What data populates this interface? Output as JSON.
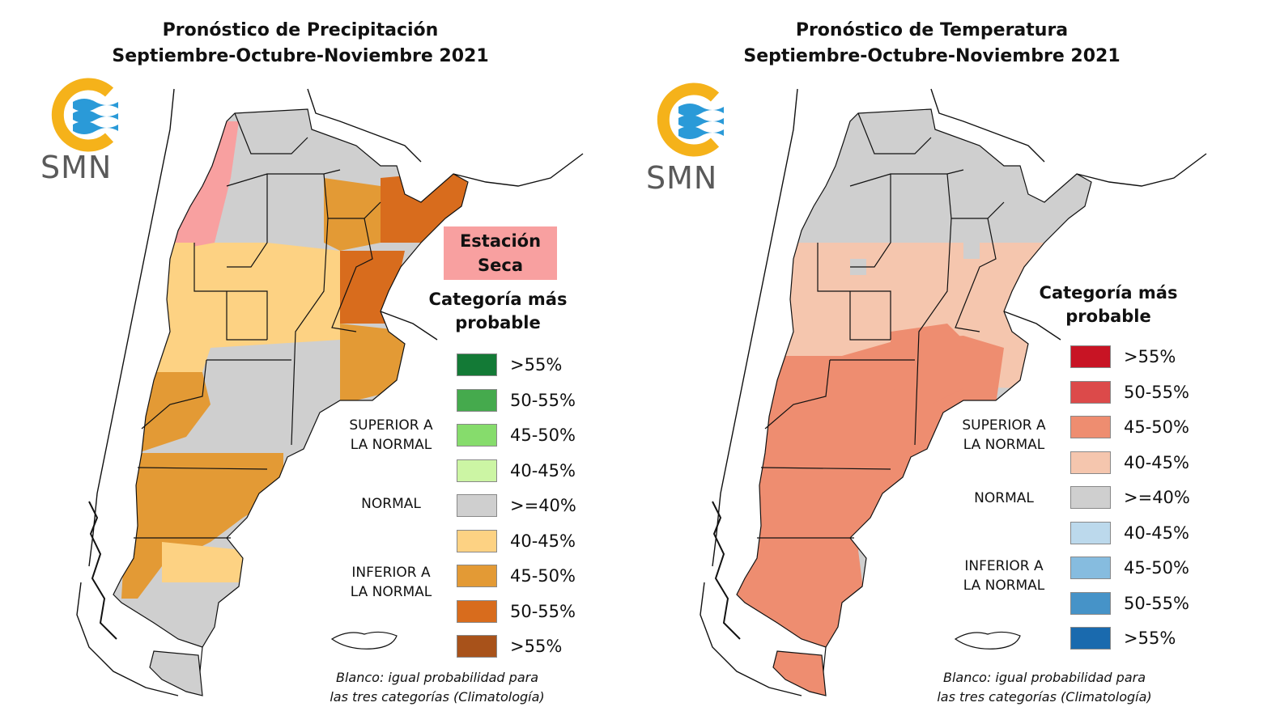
{
  "panels": [
    {
      "title_line1": "Pronóstico de Precipitación",
      "title_line2": "Septiembre-Octubre-Noviembre 2021",
      "logo_text": "SMN",
      "dry_label_line1": "Estación",
      "dry_label_line2": "Seca",
      "dry_color": "#f8a0a0",
      "legend_title_line1": "Categoría más",
      "legend_title_line2": "probable",
      "group_superior_line1": "SUPERIOR A",
      "group_superior_line2": "LA NORMAL",
      "group_normal": "NORMAL",
      "group_inferior_line1": "INFERIOR A",
      "group_inferior_line2": "LA NORMAL",
      "legend": [
        {
          "label": ">55%",
          "color": "#137a36"
        },
        {
          "label": "50-55%",
          "color": "#45aa4d"
        },
        {
          "label": "45-50%",
          "color": "#86dc6c"
        },
        {
          "label": "40-45%",
          "color": "#ccf5a4"
        },
        {
          "label": ">=40%",
          "color": "#cfcfcf"
        },
        {
          "label": "40-45%",
          "color": "#fdd283"
        },
        {
          "label": "45-50%",
          "color": "#e39a35"
        },
        {
          "label": "50-55%",
          "color": "#d86c1d"
        },
        {
          "label": ">55%",
          "color": "#a8521a"
        }
      ],
      "note_line1": "Blanco: igual probabilidad para",
      "note_line2": "las tres categorías (Climatología)"
    },
    {
      "title_line1": "Pronóstico de Temperatura",
      "title_line2": "Septiembre-Octubre-Noviembre 2021",
      "logo_text": "SMN",
      "legend_title_line1": "Categoría más",
      "legend_title_line2": "probable",
      "group_superior_line1": "SUPERIOR A",
      "group_superior_line2": "LA NORMAL",
      "group_normal": "NORMAL",
      "group_inferior_line1": "INFERIOR A",
      "group_inferior_line2": "LA NORMAL",
      "legend": [
        {
          "label": ">55%",
          "color": "#c81424"
        },
        {
          "label": "50-55%",
          "color": "#dc4a4a"
        },
        {
          "label": "45-50%",
          "color": "#ee8d70"
        },
        {
          "label": "40-45%",
          "color": "#f5c6ae"
        },
        {
          "label": ">=40%",
          "color": "#cfcfcf"
        },
        {
          "label": "40-45%",
          "color": "#bcd9ec"
        },
        {
          "label": "45-50%",
          "color": "#86bcdf"
        },
        {
          "label": "50-55%",
          "color": "#4693c8"
        },
        {
          "label": ">55%",
          "color": "#1a6aae"
        }
      ],
      "note_line1": "Blanco: igual probabilidad para",
      "note_line2": "las tres categorías (Climatología)"
    }
  ],
  "logo_colors": {
    "ring": "#f5b21a",
    "waves": "#2a9ad8"
  }
}
